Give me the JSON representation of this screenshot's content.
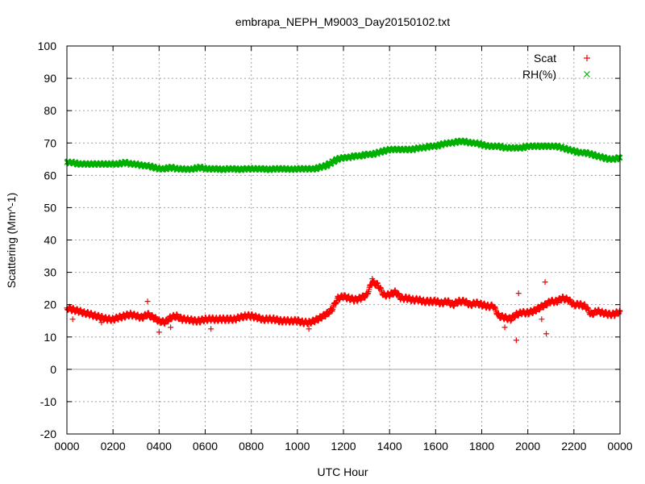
{
  "chart_data": {
    "type": "scatter",
    "title": "embrapa_NEPH_M9003_Day20150102.txt",
    "xlabel": "UTC Hour",
    "ylabel": "Scattering (Mm^-1)",
    "xlim": [
      0,
      24
    ],
    "ylim": [
      -20,
      100
    ],
    "x_ticks": [
      0,
      2,
      4,
      6,
      8,
      10,
      12,
      14,
      16,
      18,
      20,
      22,
      24
    ],
    "x_tick_labels": [
      "0000",
      "0200",
      "0400",
      "0600",
      "0800",
      "1000",
      "1200",
      "1400",
      "1600",
      "1800",
      "2000",
      "2200",
      "0000"
    ],
    "y_ticks": [
      -20,
      -10,
      0,
      10,
      20,
      30,
      40,
      50,
      60,
      70,
      80,
      90,
      100
    ],
    "y_tick_labels": [
      "-20",
      "-10",
      "0",
      "10",
      "20",
      "30",
      "40",
      "50",
      "60",
      "70",
      "80",
      "90",
      "100"
    ],
    "grid": true,
    "legend_position": "top-right",
    "zero_line": true,
    "series": [
      {
        "name": "Scat",
        "marker": "+",
        "color": "#ff0000",
        "x": [
          0.0,
          0.25,
          0.5,
          0.75,
          1.0,
          1.25,
          1.5,
          1.75,
          2.0,
          2.25,
          2.5,
          2.75,
          3.0,
          3.25,
          3.5,
          3.75,
          4.0,
          4.25,
          4.5,
          4.75,
          5.0,
          5.25,
          5.5,
          5.75,
          6.0,
          6.25,
          6.5,
          6.75,
          7.0,
          7.25,
          7.5,
          7.75,
          8.0,
          8.25,
          8.5,
          8.75,
          9.0,
          9.25,
          9.5,
          9.75,
          10.0,
          10.25,
          10.5,
          10.75,
          11.0,
          11.25,
          11.5,
          11.75,
          12.0,
          12.25,
          12.5,
          12.75,
          13.0,
          13.25,
          13.5,
          13.75,
          14.0,
          14.25,
          14.5,
          14.75,
          15.0,
          15.25,
          15.5,
          15.75,
          16.0,
          16.25,
          16.5,
          16.75,
          17.0,
          17.25,
          17.5,
          17.75,
          18.0,
          18.25,
          18.5,
          18.75,
          19.0,
          19.25,
          19.5,
          19.75,
          20.0,
          20.25,
          20.5,
          20.75,
          21.0,
          21.25,
          21.5,
          21.75,
          22.0,
          22.25,
          22.5,
          22.75,
          23.0,
          23.25,
          23.5,
          23.75,
          24.0
        ],
        "y": [
          19,
          18.5,
          18,
          17.5,
          17,
          16.5,
          16,
          15.5,
          15.5,
          16,
          16.5,
          17,
          16.5,
          16,
          17,
          16,
          15,
          14.5,
          16,
          16.5,
          15.5,
          15.5,
          15,
          15,
          15.5,
          15.5,
          15.5,
          15.5,
          15.5,
          15.5,
          16,
          16.5,
          16.5,
          16,
          15.5,
          15.5,
          15.5,
          15,
          15,
          15,
          15,
          14.5,
          14.5,
          15,
          16,
          17,
          18.5,
          22,
          22.5,
          22,
          21.5,
          22,
          23,
          27,
          26,
          23,
          23,
          24,
          22,
          22,
          21.5,
          21.5,
          21,
          21,
          21,
          20.5,
          21,
          20,
          21,
          21,
          20,
          20.5,
          20,
          19.5,
          19.5,
          16.5,
          16,
          15.5,
          17,
          17.5,
          17.5,
          18,
          19,
          20,
          21,
          21,
          22,
          21.5,
          20,
          20,
          19.5,
          17,
          18,
          17.5,
          17,
          17,
          18
        ],
        "outliers_x": [
          0.25,
          3.5,
          4.0,
          4.5,
          6.25,
          1.5,
          10.5,
          13.0,
          13.25,
          19.5,
          20.75,
          20.8,
          20.6,
          19.6,
          19.0
        ],
        "outliers_y": [
          15.5,
          21,
          11.5,
          13,
          12.5,
          14.5,
          12.5,
          23.5,
          28,
          9,
          27,
          11,
          15.5,
          23.5,
          13
        ]
      },
      {
        "name": "RH(%)",
        "marker": "x",
        "color": "#00b000",
        "x": [
          0.0,
          0.25,
          0.5,
          0.75,
          1.0,
          1.25,
          1.5,
          1.75,
          2.0,
          2.25,
          2.5,
          2.75,
          3.0,
          3.25,
          3.5,
          3.75,
          4.0,
          4.25,
          4.5,
          4.75,
          5.0,
          5.25,
          5.5,
          5.75,
          6.0,
          6.25,
          6.5,
          6.75,
          7.0,
          7.25,
          7.5,
          7.75,
          8.0,
          8.25,
          8.5,
          8.75,
          9.0,
          9.25,
          9.5,
          9.75,
          10.0,
          10.25,
          10.5,
          10.75,
          11.0,
          11.25,
          11.5,
          11.75,
          12.0,
          12.25,
          12.5,
          12.75,
          13.0,
          13.25,
          13.5,
          13.75,
          14.0,
          14.25,
          14.5,
          14.75,
          15.0,
          15.25,
          15.5,
          15.75,
          16.0,
          16.25,
          16.5,
          16.75,
          17.0,
          17.25,
          17.5,
          17.75,
          18.0,
          18.25,
          18.5,
          18.75,
          19.0,
          19.25,
          19.5,
          19.75,
          20.0,
          20.25,
          20.5,
          20.75,
          21.0,
          21.25,
          21.5,
          21.75,
          22.0,
          22.25,
          22.5,
          22.75,
          23.0,
          23.25,
          23.5,
          23.75,
          24.0
        ],
        "y": [
          64,
          64,
          63.5,
          63.5,
          63.5,
          63.5,
          63.5,
          63.5,
          63.5,
          63.5,
          64,
          63.5,
          63.5,
          63,
          63,
          62.5,
          62,
          62,
          62.5,
          62,
          62,
          61.8,
          62,
          62.5,
          62,
          62,
          62,
          61.8,
          62,
          62,
          61.8,
          62,
          62,
          62,
          62,
          61.8,
          62,
          62,
          62,
          61.8,
          62,
          62,
          62,
          62,
          62.5,
          63,
          64,
          65,
          65.5,
          65.5,
          66,
          66,
          66.5,
          66.5,
          67,
          67.5,
          68,
          68,
          68,
          68,
          68,
          68.5,
          68.5,
          69,
          69,
          69.5,
          70,
          70,
          70.5,
          70.5,
          70,
          70,
          69.5,
          69,
          69,
          69,
          68.5,
          68.5,
          68.5,
          68.5,
          69,
          69,
          69,
          69,
          69,
          69,
          68.5,
          68,
          67.5,
          67,
          67,
          66.5,
          66,
          65.5,
          65,
          65,
          65.5
        ]
      }
    ]
  }
}
